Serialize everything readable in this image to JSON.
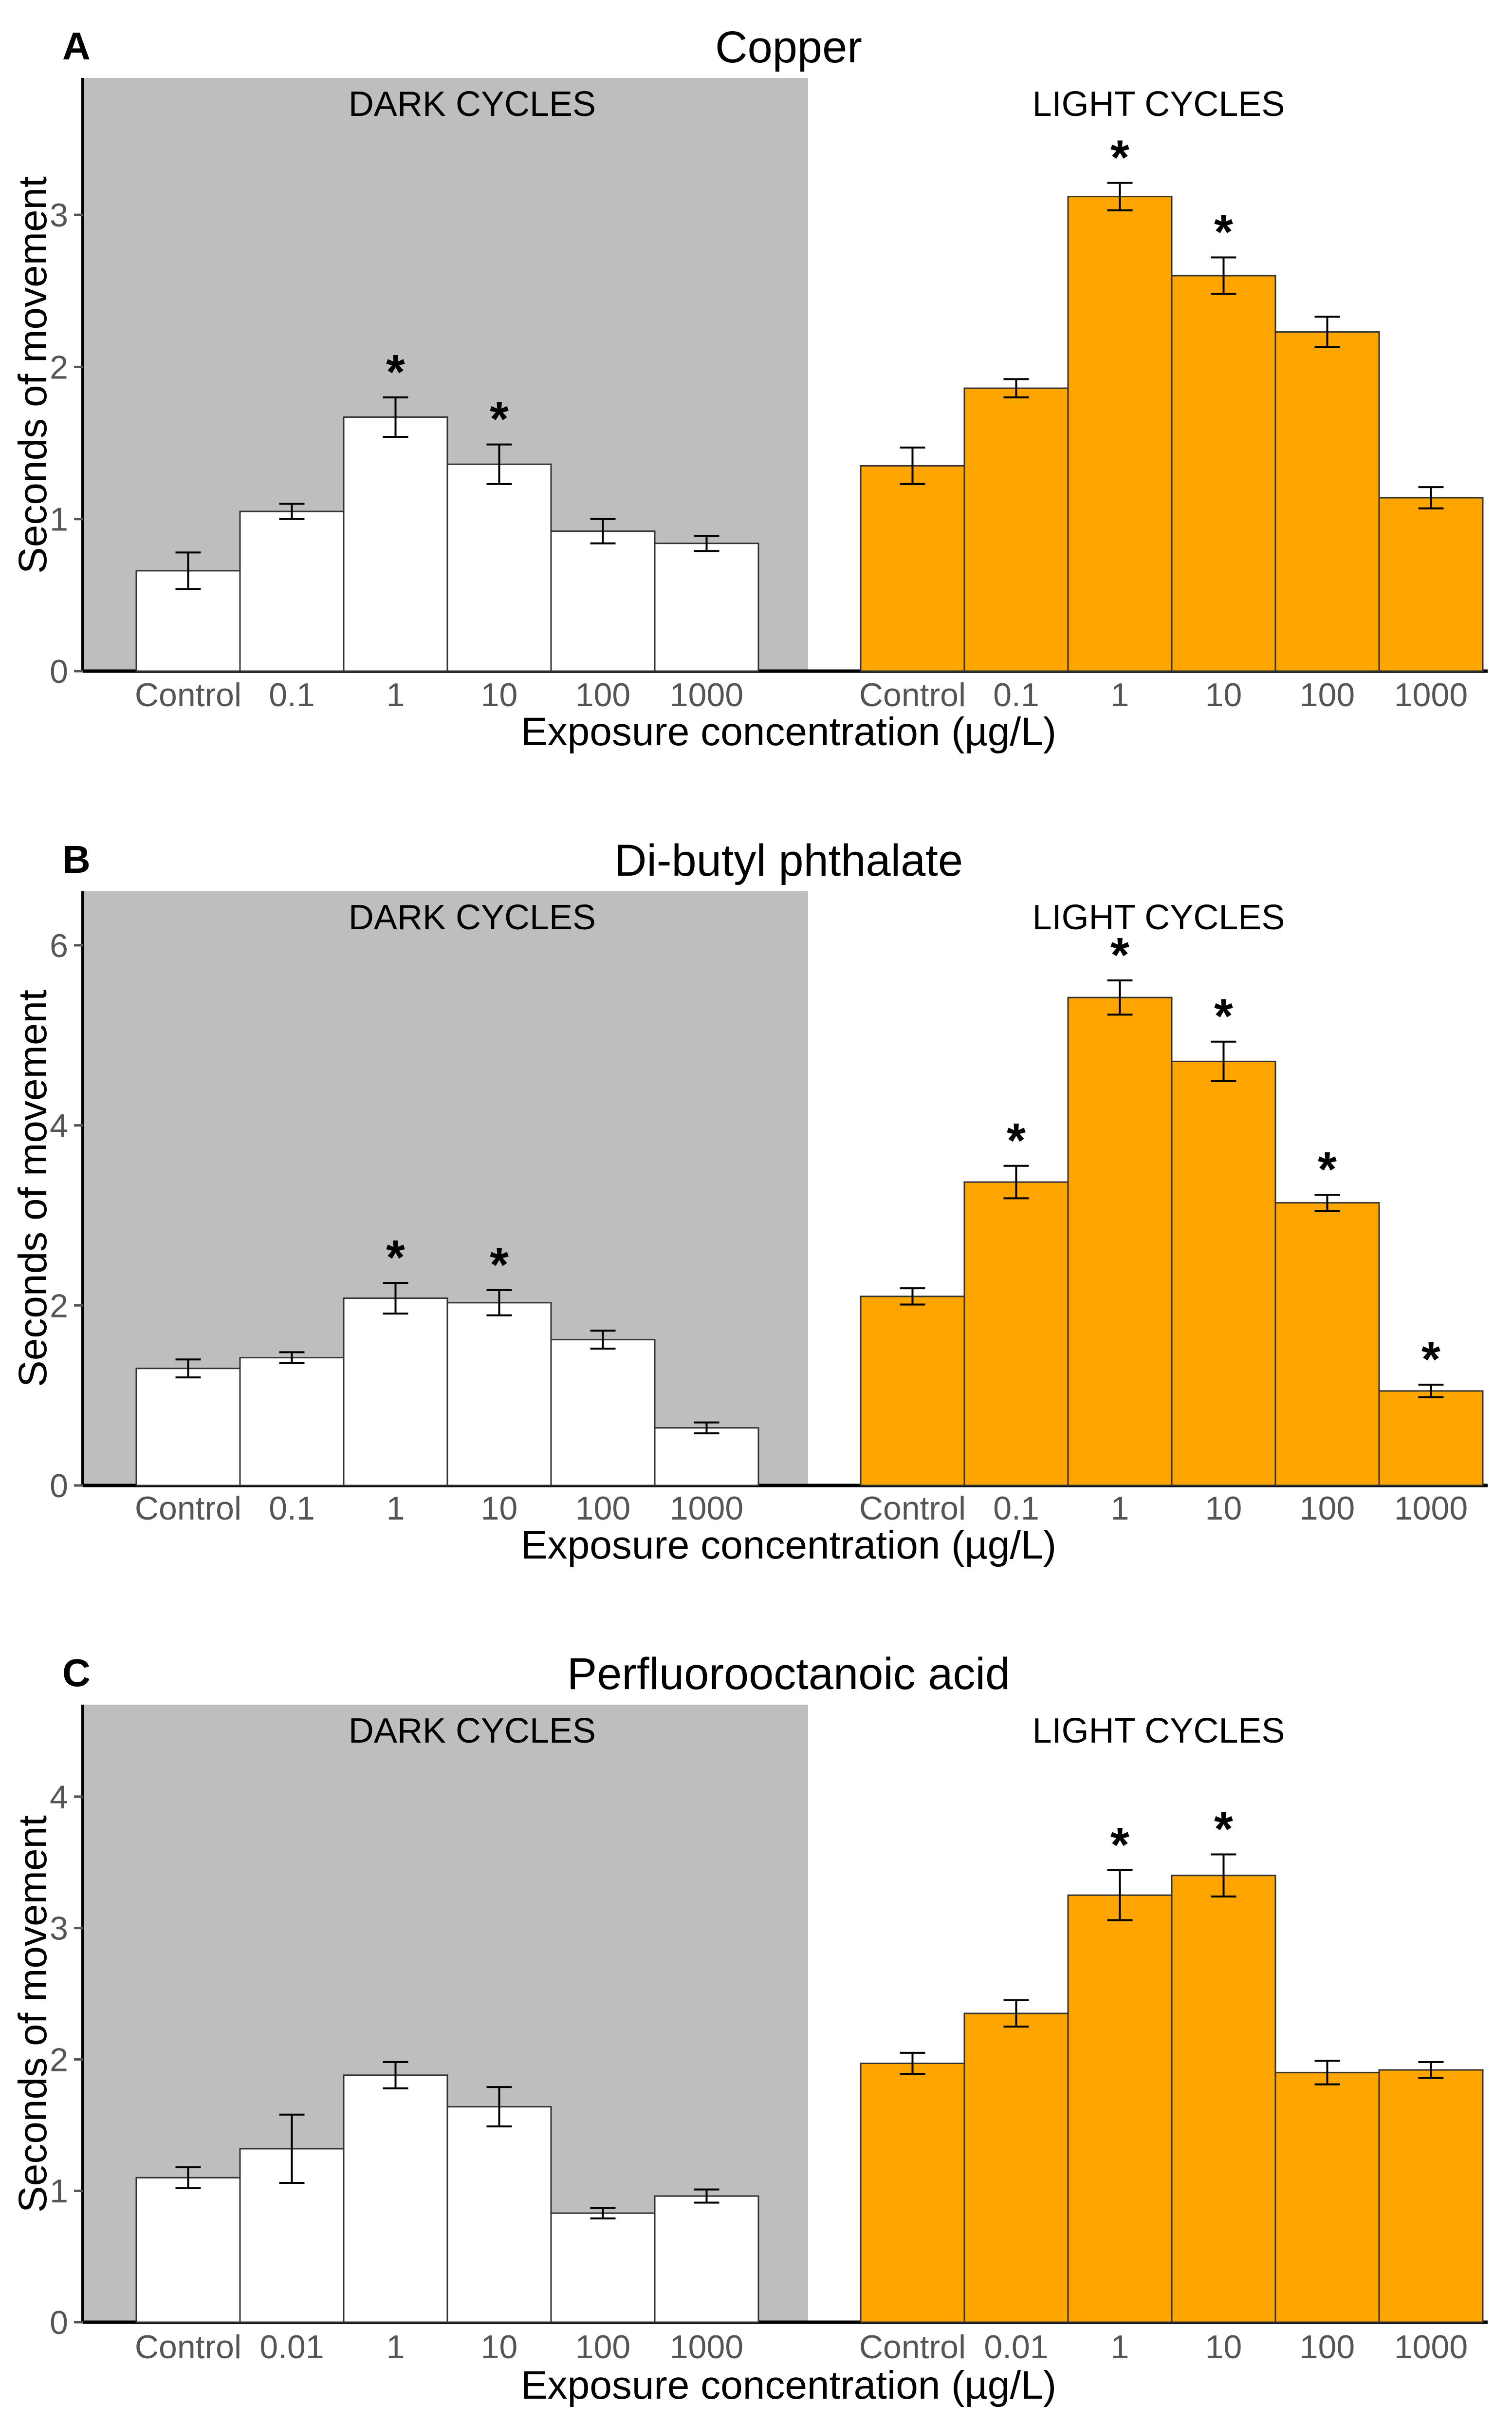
{
  "colors": {
    "dark_bg": "#bebebe",
    "dark_bar": "#ffffff",
    "light_bar": "#ffa500",
    "bar_stroke": "#333333"
  },
  "chart_data": [
    {
      "type": "bar",
      "panel": "A",
      "title": "Copper",
      "xlabel": "Exposure concentration (µg/L)",
      "ylabel": "Seconds of movement",
      "ylim": [
        0,
        3.9
      ],
      "yticks": [
        0,
        1,
        2,
        3
      ],
      "groups": [
        {
          "name": "DARK CYCLES",
          "categories": [
            "Control",
            "0.1",
            "1",
            "10",
            "100",
            "1000"
          ],
          "values": [
            0.66,
            1.05,
            1.67,
            1.36,
            0.92,
            0.84
          ],
          "errors": [
            0.12,
            0.05,
            0.13,
            0.13,
            0.08,
            0.05
          ],
          "significant": [
            false,
            false,
            true,
            true,
            false,
            false
          ]
        },
        {
          "name": "LIGHT CYCLES",
          "categories": [
            "Control",
            "0.1",
            "1",
            "10",
            "100",
            "1000"
          ],
          "values": [
            1.35,
            1.86,
            3.12,
            2.6,
            2.23,
            1.14
          ],
          "errors": [
            0.12,
            0.06,
            0.09,
            0.12,
            0.1,
            0.07
          ],
          "significant": [
            false,
            false,
            true,
            true,
            false,
            false
          ]
        }
      ]
    },
    {
      "type": "bar",
      "panel": "B",
      "title": "Di-butyl phthalate",
      "xlabel": "Exposure concentration (µg/L)",
      "ylabel": "Seconds of movement",
      "ylim": [
        0,
        6.6
      ],
      "yticks": [
        0,
        2,
        4,
        6
      ],
      "groups": [
        {
          "name": "DARK CYCLES",
          "categories": [
            "Control",
            "0.1",
            "1",
            "10",
            "100",
            "1000"
          ],
          "values": [
            1.3,
            1.42,
            2.08,
            2.03,
            1.62,
            0.64
          ],
          "errors": [
            0.1,
            0.06,
            0.17,
            0.14,
            0.1,
            0.06
          ],
          "significant": [
            false,
            false,
            true,
            true,
            false,
            false
          ]
        },
        {
          "name": "LIGHT CYCLES",
          "categories": [
            "Control",
            "0.1",
            "1",
            "10",
            "100",
            "1000"
          ],
          "values": [
            2.1,
            3.37,
            5.42,
            4.71,
            3.14,
            1.05
          ],
          "errors": [
            0.09,
            0.18,
            0.19,
            0.22,
            0.09,
            0.07
          ],
          "significant": [
            false,
            true,
            true,
            true,
            true,
            true
          ]
        }
      ]
    },
    {
      "type": "bar",
      "panel": "C",
      "title": "Perfluorooctanoic acid",
      "xlabel": "Exposure concentration (µg/L)",
      "ylabel": "Seconds of movement",
      "ylim": [
        0,
        4.7
      ],
      "yticks": [
        0,
        1,
        2,
        3,
        4
      ],
      "groups": [
        {
          "name": "DARK CYCLES",
          "categories": [
            "Control",
            "0.01",
            "1",
            "10",
            "100",
            "1000"
          ],
          "values": [
            1.1,
            1.32,
            1.88,
            1.64,
            0.83,
            0.96
          ],
          "errors": [
            0.08,
            0.26,
            0.1,
            0.15,
            0.04,
            0.05
          ],
          "significant": [
            false,
            false,
            false,
            false,
            false,
            false
          ]
        },
        {
          "name": "LIGHT CYCLES",
          "categories": [
            "Control",
            "0.01",
            "1",
            "10",
            "100",
            "1000"
          ],
          "values": [
            1.97,
            2.35,
            3.25,
            3.4,
            1.9,
            1.92
          ],
          "errors": [
            0.08,
            0.1,
            0.19,
            0.16,
            0.09,
            0.06
          ],
          "significant": [
            false,
            false,
            true,
            true,
            false,
            false
          ]
        }
      ]
    }
  ]
}
